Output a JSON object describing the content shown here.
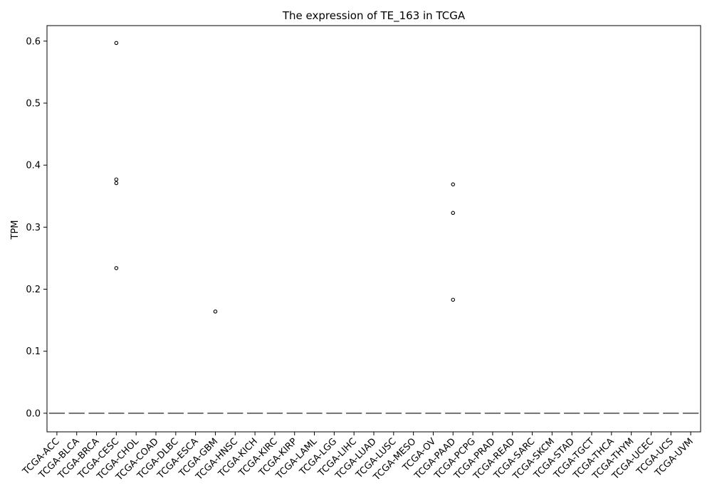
{
  "chart_data": {
    "type": "box",
    "title": "The expression of TE_163 in TCGA",
    "xlabel": "",
    "ylabel": "TPM",
    "ylim": [
      -0.03,
      0.625
    ],
    "yticks": [
      "0.0",
      "0.1",
      "0.2",
      "0.3",
      "0.4",
      "0.5",
      "0.6"
    ],
    "grid": false,
    "categories": [
      "TCGA-ACC",
      "TCGA-BLCA",
      "TCGA-BRCA",
      "TCGA-CESC",
      "TCGA-CHOL",
      "TCGA-COAD",
      "TCGA-DLBC",
      "TCGA-ESCA",
      "TCGA-GBM",
      "TCGA-HNSC",
      "TCGA-KICH",
      "TCGA-KIRC",
      "TCGA-KIRP",
      "TCGA-LAML",
      "TCGA-LGG",
      "TCGA-LIHC",
      "TCGA-LUAD",
      "TCGA-LUSC",
      "TCGA-MESO",
      "TCGA-OV",
      "TCGA-PAAD",
      "TCGA-PCPG",
      "TCGA-PRAD",
      "TCGA-READ",
      "TCGA-SARC",
      "TCGA-SKCM",
      "TCGA-STAD",
      "TCGA-TGCT",
      "TCGA-THCA",
      "TCGA-THYM",
      "TCGA-UCEC",
      "TCGA-UCS",
      "TCGA-UVM"
    ],
    "box_value": 0.0,
    "outliers": [
      {
        "category": "TCGA-CESC",
        "value": 0.597
      },
      {
        "category": "TCGA-CESC",
        "value": 0.377
      },
      {
        "category": "TCGA-CESC",
        "value": 0.371
      },
      {
        "category": "TCGA-CESC",
        "value": 0.234
      },
      {
        "category": "TCGA-GBM",
        "value": 0.164
      },
      {
        "category": "TCGA-PAAD",
        "value": 0.369
      },
      {
        "category": "TCGA-PAAD",
        "value": 0.323
      },
      {
        "category": "TCGA-PAAD",
        "value": 0.183
      }
    ],
    "colors": {
      "axis": "#000000",
      "box": "#555555",
      "outlier": "#000000"
    }
  }
}
